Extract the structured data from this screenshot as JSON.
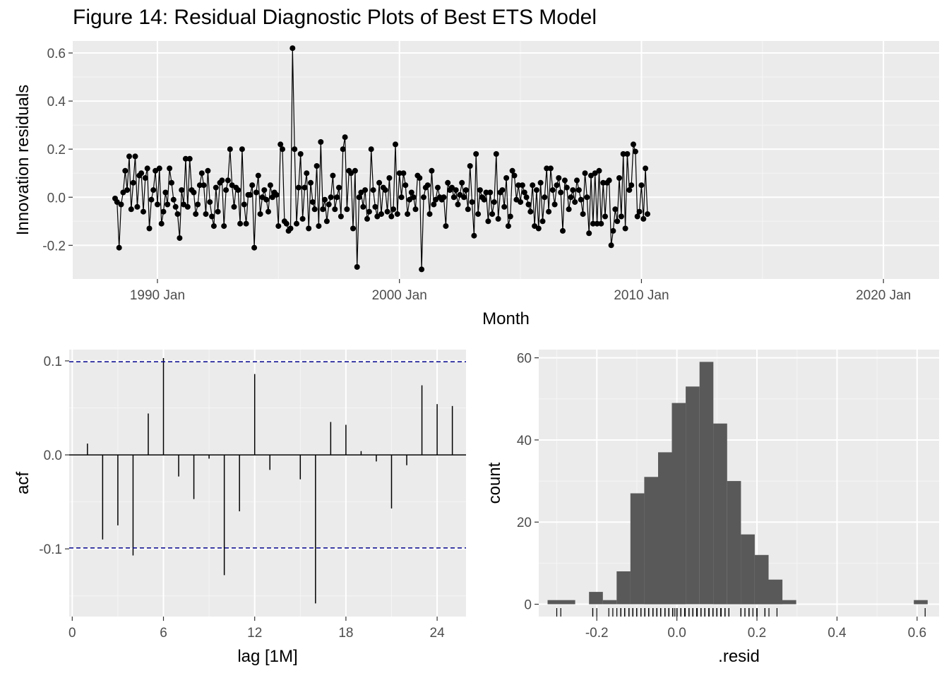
{
  "title": "Figure 14: Residual Diagnostic Plots of Best ETS Model",
  "chart_data": [
    {
      "type": "line",
      "panel": "time-series",
      "xlabel": "Month",
      "ylabel": "Innovation residuals",
      "x_tick_labels": [
        "1990 Jan",
        "2000 Jan",
        "2010 Jan",
        "2020 Jan"
      ],
      "x_tick_years": [
        1990,
        2000,
        2010,
        2020
      ],
      "y_tick_labels": [
        "-0.2",
        "0.0",
        "0.2",
        "0.4",
        "0.6"
      ],
      "y_ticks": [
        -0.2,
        0.0,
        0.2,
        0.4,
        0.6
      ],
      "xlim": [
        1986.5,
        2022.3
      ],
      "ylim": [
        -0.34,
        0.65
      ],
      "grid": true,
      "start": "1988 Apr",
      "frequency": "monthly",
      "series_color": "#000000",
      "values": [
        -0.005,
        -0.02,
        -0.21,
        -0.03,
        0.02,
        0.11,
        0.03,
        0.17,
        -0.05,
        0.06,
        0.17,
        -0.04,
        0.09,
        0.1,
        -0.06,
        0.08,
        0.12,
        -0.13,
        -0.01,
        0.03,
        0.11,
        -0.03,
        0.12,
        -0.11,
        -0.06,
        0.02,
        -0.03,
        0.12,
        0.06,
        -0.01,
        -0.04,
        -0.07,
        -0.17,
        0.03,
        -0.03,
        0.16,
        -0.04,
        0.16,
        0.03,
        0.02,
        -0.07,
        -0.03,
        0.05,
        0.1,
        0.05,
        -0.07,
        0.11,
        -0.02,
        -0.08,
        -0.12,
        0.04,
        -0.06,
        0.06,
        0.07,
        -0.12,
        0.03,
        0.07,
        0.2,
        0.05,
        -0.04,
        0.04,
        0.03,
        -0.11,
        0.2,
        -0.03,
        -0.11,
        0.01,
        0.01,
        0.05,
        -0.21,
        0.02,
        0.09,
        -0.07,
        0.0,
        0.03,
        -0.01,
        -0.06,
        0.05,
        0.0,
        0.02,
        0.01,
        -0.12,
        0.22,
        0.2,
        -0.1,
        -0.11,
        -0.14,
        -0.13,
        0.62,
        0.2,
        -0.11,
        0.04,
        0.18,
        -0.09,
        0.04,
        0.1,
        -0.13,
        0.06,
        -0.02,
        -0.05,
        0.13,
        -0.12,
        0.23,
        -0.05,
        -0.01,
        -0.1,
        -0.03,
        0.0,
        0.09,
        -0.05,
        0.0,
        0.04,
        -0.08,
        0.2,
        0.25,
        -0.05,
        0.11,
        0.1,
        -0.13,
        0.11,
        -0.29,
        0.0,
        0.02,
        -0.04,
        0.03,
        -0.09,
        -0.06,
        0.2,
        0.03,
        -0.04,
        -0.08,
        0.06,
        -0.07,
        0.04,
        0.03,
        -0.06,
        0.08,
        -0.08,
        -0.05,
        0.22,
        -0.07,
        0.1,
        0.0,
        0.1,
        0.05,
        -0.07,
        -0.01,
        0.02,
        0.0,
        -0.05,
        0.09,
        0.08,
        -0.3,
        0.0,
        0.04,
        0.05,
        -0.07,
        0.11,
        -0.03,
        -0.01,
        0.04,
        0.0,
        -0.01,
        0.0,
        -0.12,
        0.06,
        0.03,
        0.04,
        0.0,
        0.03,
        -0.03,
        0.01,
        0.06,
        0.0,
        0.03,
        -0.05,
        0.13,
        -0.02,
        -0.16,
        0.18,
        -0.07,
        0.03,
        0.0,
        -0.01,
        0.02,
        -0.1,
        0.02,
        -0.07,
        -0.02,
        0.18,
        -0.09,
        0.02,
        0.03,
        -0.04,
        0.08,
        -0.12,
        -0.08,
        0.11,
        0.09,
        -0.01,
        0.05,
        -0.02,
        0.05,
        0.02,
        0.0,
        -0.03,
        -0.06,
        0.05,
        -0.12,
        0.03,
        -0.13,
        0.06,
        -0.1,
        0.0,
        0.12,
        -0.06,
        0.12,
        0.03,
        -0.03,
        0.05,
        0.08,
        0.02,
        -0.14,
        0.07,
        0.04,
        -0.05,
        0.0,
        0.03,
        -0.02,
        0.07,
        0.03,
        -0.01,
        -0.07,
        0.1,
        0.0,
        -0.15,
        0.09,
        -0.11,
        0.1,
        -0.11,
        0.11,
        -0.11,
        0.06,
        -0.08,
        0.06,
        0.07,
        -0.2,
        -0.14,
        -0.05,
        -0.1,
        0.08,
        -0.08,
        0.18,
        -0.13,
        0.18,
        0.03,
        0.05,
        0.22,
        0.19,
        -0.08,
        -0.06,
        0.05,
        -0.09,
        0.12,
        -0.07
      ]
    },
    {
      "type": "bar",
      "panel": "acf",
      "xlabel": "lag [1M]",
      "ylabel": "acf",
      "x_tick_labels": [
        "0",
        "6",
        "12",
        "18",
        "24"
      ],
      "x_ticks": [
        0,
        6,
        12,
        18,
        24
      ],
      "y_tick_labels": [
        "-0.1",
        "0.0",
        "0.1"
      ],
      "y_ticks": [
        -0.1,
        0.0,
        0.1
      ],
      "xlim": [
        -0.2,
        25.9
      ],
      "ylim": [
        -0.172,
        0.112
      ],
      "lags": [
        1,
        2,
        3,
        4,
        5,
        6,
        7,
        8,
        9,
        10,
        11,
        12,
        13,
        14,
        15,
        16,
        17,
        18,
        19,
        20,
        21,
        22,
        23,
        24,
        25
      ],
      "values": [
        0.012,
        -0.09,
        -0.075,
        -0.107,
        0.044,
        0.103,
        -0.023,
        -0.047,
        -0.004,
        -0.128,
        -0.06,
        0.086,
        -0.016,
        0.0,
        -0.026,
        -0.158,
        0.035,
        0.032,
        0.004,
        -0.007,
        -0.057,
        -0.011,
        0.074,
        0.054,
        0.052
      ],
      "confidence_bound": 0.099,
      "bound_color": "#00008b",
      "grid": true
    },
    {
      "type": "histogram",
      "panel": "histogram",
      "xlabel": ".resid",
      "ylabel": "count",
      "x_tick_labels": [
        "-0.2",
        "0.0",
        "0.2",
        "0.4",
        "0.6"
      ],
      "x_ticks": [
        -0.2,
        0.0,
        0.2,
        0.4,
        0.6
      ],
      "y_tick_labels": [
        "0",
        "20",
        "40",
        "60"
      ],
      "y_ticks": [
        0,
        20,
        40,
        60
      ],
      "xlim": [
        -0.345,
        0.655
      ],
      "ylim": [
        -3.0,
        62.0
      ],
      "bin_width": 0.0345,
      "bins": [
        {
          "start": -0.323,
          "count": 1
        },
        {
          "start": -0.2885,
          "count": 1
        },
        {
          "start": -0.254,
          "count": 0
        },
        {
          "start": -0.2195,
          "count": 3
        },
        {
          "start": -0.185,
          "count": 1
        },
        {
          "start": -0.1505,
          "count": 8
        },
        {
          "start": -0.116,
          "count": 27
        },
        {
          "start": -0.0815,
          "count": 31
        },
        {
          "start": -0.047,
          "count": 37
        },
        {
          "start": -0.0125,
          "count": 49
        },
        {
          "start": 0.022,
          "count": 53
        },
        {
          "start": 0.0565,
          "count": 59
        },
        {
          "start": 0.091,
          "count": 44
        },
        {
          "start": 0.1255,
          "count": 30
        },
        {
          "start": 0.16,
          "count": 17
        },
        {
          "start": 0.1945,
          "count": 12
        },
        {
          "start": 0.229,
          "count": 6
        },
        {
          "start": 0.2635,
          "count": 1
        },
        {
          "start": 0.5919,
          "count": 1
        }
      ],
      "fill_color": "#595959",
      "rug": true,
      "grid": true
    }
  ]
}
